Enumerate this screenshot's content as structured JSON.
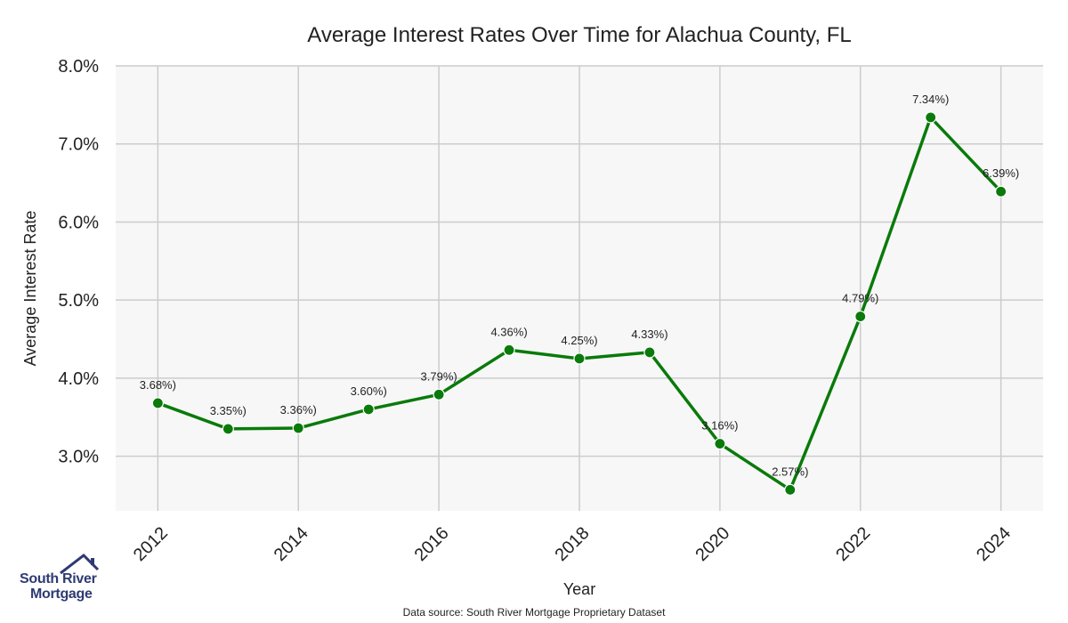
{
  "chart_data": {
    "type": "line",
    "title": "Average Interest Rates Over Time for Alachua County, FL",
    "xlabel": "Year",
    "ylabel": "Average Interest Rate",
    "x": [
      2012,
      2013,
      2014,
      2015,
      2016,
      2017,
      2018,
      2019,
      2020,
      2021,
      2022,
      2023,
      2024
    ],
    "values": [
      3.68,
      3.35,
      3.36,
      3.6,
      3.79,
      4.36,
      4.25,
      4.33,
      3.16,
      2.57,
      4.79,
      7.34,
      6.39
    ],
    "point_labels": [
      "3.68%)",
      "3.35%)",
      "3.36%)",
      "3.60%)",
      "3.79%)",
      "4.36%)",
      "4.25%)",
      "4.33%)",
      "3.16%)",
      "2.57%)",
      "4.79%)",
      "7.34%)",
      "6.39%)"
    ],
    "x_ticks": [
      "2012",
      "2014",
      "2016",
      "2018",
      "2020",
      "2022",
      "2024"
    ],
    "y_ticks": [
      "3.0%",
      "4.0%",
      "5.0%",
      "6.0%",
      "7.0%",
      "8.0%"
    ],
    "y_tick_values": [
      3,
      4,
      5,
      6,
      7,
      8
    ],
    "xlim": [
      2011.4,
      2024.6
    ],
    "ylim": [
      2.3,
      8.0
    ],
    "grid": true,
    "line_color": "#0a7a0a",
    "plot_background": "#f7f7f7",
    "grid_color": "#cccccc"
  },
  "logo": {
    "line1": "South River",
    "line2": "Mortgage",
    "brand_color": "#2e3a73"
  },
  "source": "Data source: South River Mortgage Proprietary Dataset"
}
